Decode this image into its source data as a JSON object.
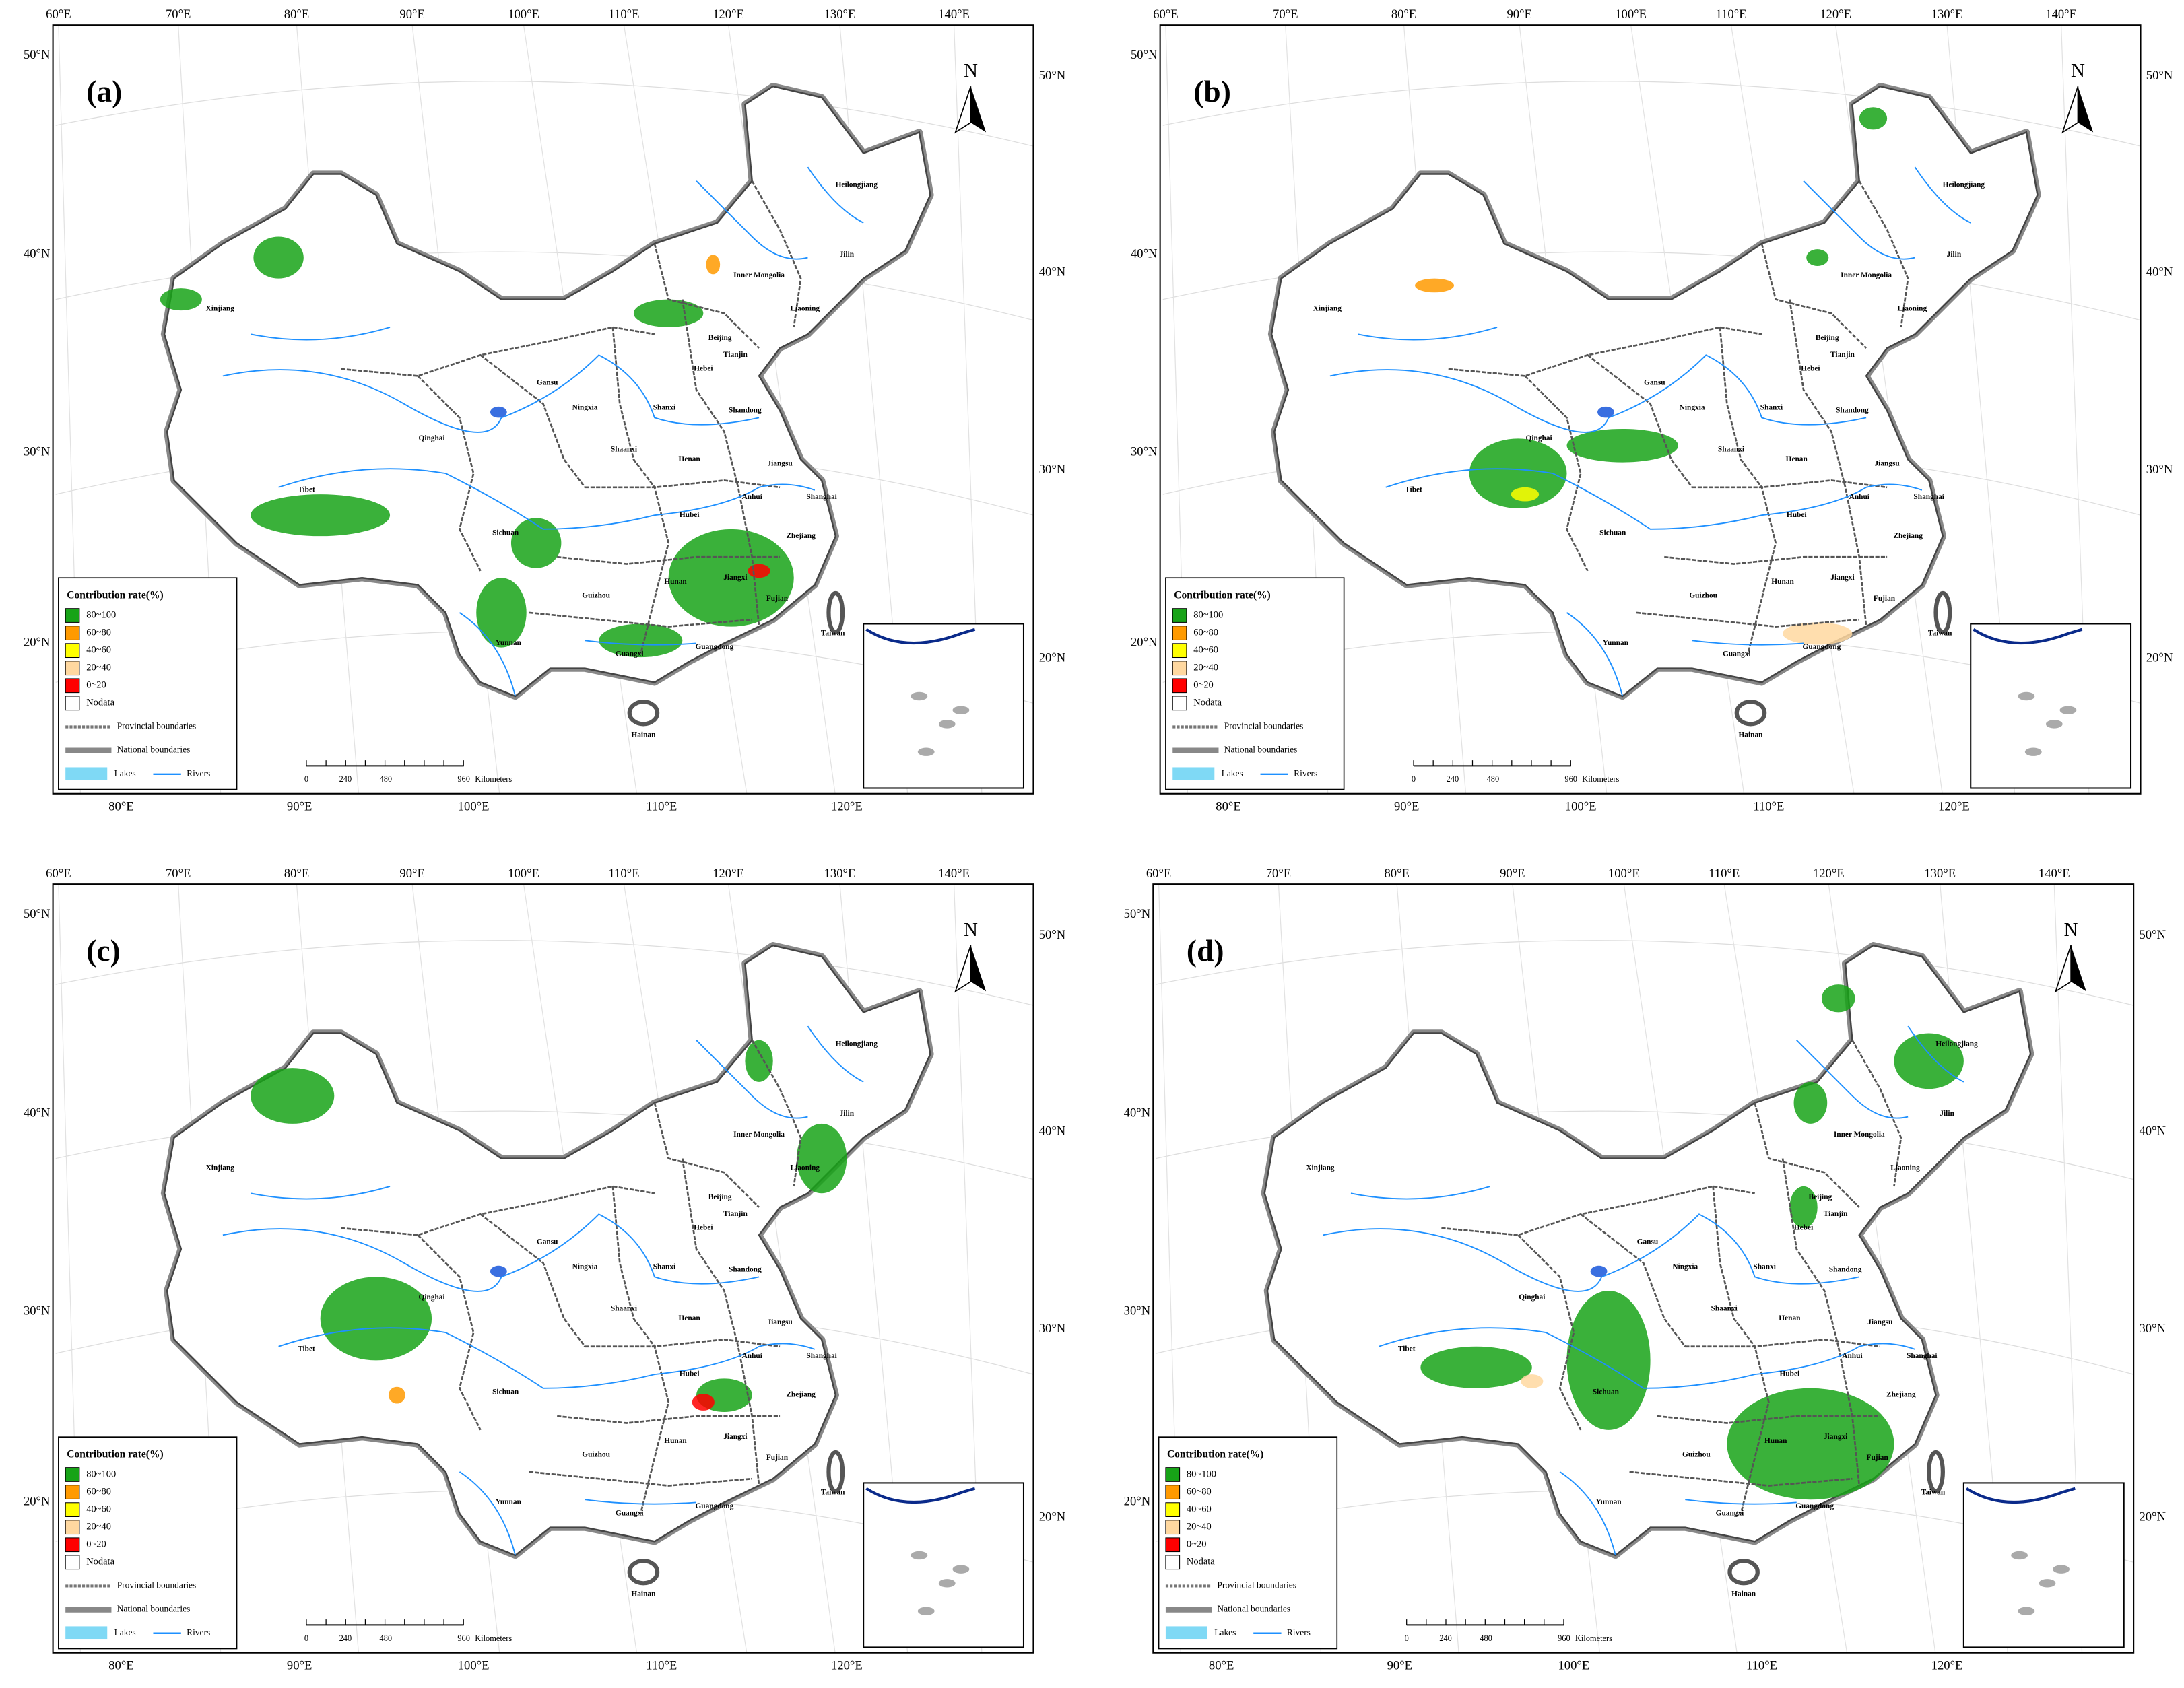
{
  "panels": [
    {
      "label": "(a)"
    },
    {
      "label": "(b)"
    },
    {
      "label": "(c)"
    },
    {
      "label": "(d)"
    }
  ],
  "graticule": {
    "top": [
      "60°E",
      "70°E",
      "80°E",
      "90°E",
      "100°E",
      "110°E",
      "120°E",
      "130°E",
      "140°E"
    ],
    "left": [
      "50°N",
      "40°N",
      "30°N",
      "20°N"
    ],
    "right": [
      "50°N",
      "40°N",
      "30°N",
      "20°N"
    ],
    "bottom": [
      "80°E",
      "90°E",
      "100°E",
      "110°E",
      "120°E"
    ]
  },
  "north": "N",
  "provinces": [
    "Heilongjiang",
    "Jilin",
    "Inner Mongolia",
    "Liaoning",
    "Xinjiang",
    "Beijing",
    "Tianjin",
    "Hebei",
    "Gansu",
    "Ningxia",
    "Shanxi",
    "Shandong",
    "Qinghai",
    "Shaanxi",
    "Henan",
    "Jiangsu",
    "Tibet",
    "Anhui",
    "Shanghai",
    "Sichuan",
    "Hubei",
    "Zhejiang",
    "Hunan",
    "Jiangxi",
    "Guizhou",
    "Fujian",
    "Yunnan",
    "Guangxi",
    "Guangdong",
    "Taiwan",
    "Hainan"
  ],
  "legend": {
    "title": "Contribution rate(%)",
    "classes": [
      {
        "label": "80~100",
        "color": "#17a317"
      },
      {
        "label": "60~80",
        "color": "#ff9a00"
      },
      {
        "label": "40~60",
        "color": "#ffff00"
      },
      {
        "label": "20~40",
        "color": "#ffd8a0"
      },
      {
        "label": "0~20",
        "color": "#ff0000"
      },
      {
        "label": "Nodata",
        "color": "#ffffff"
      }
    ],
    "provincial": "Provincial boundaries",
    "national": "National boundaries",
    "lakes": "Lakes",
    "rivers": "Rivers"
  },
  "scale_bar": {
    "ticks": [
      "0",
      "240",
      "480",
      "960"
    ],
    "unit": "Kilometers"
  }
}
